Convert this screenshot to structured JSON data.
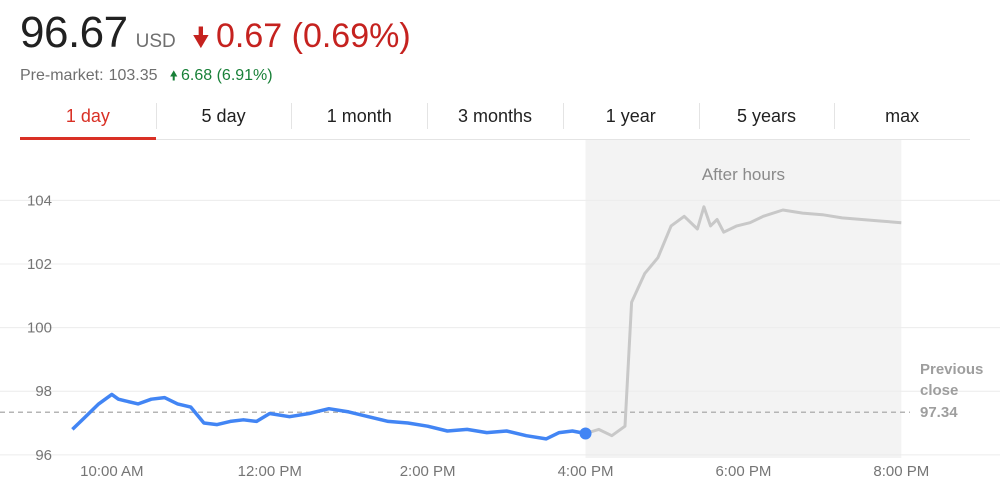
{
  "quote": {
    "price": "96.67",
    "currency": "USD",
    "change": "0.67 (0.69%)",
    "pre_market_label": "Pre-market:",
    "pre_market_price": "103.35",
    "pre_market_change": "6.68 (6.91%)"
  },
  "colors": {
    "regular_line": "#4285f4",
    "after_hours_line": "#c8c8c8",
    "after_hours_band": "#f3f3f3",
    "negative": "#d93025",
    "positive": "#188038",
    "grid": "#ececec"
  },
  "tabs": [
    "1 day",
    "5 day",
    "1 month",
    "3 months",
    "1 year",
    "5 years",
    "max"
  ],
  "active_tab": "1 day",
  "chart_data": {
    "type": "line",
    "y_ticks": [
      "104",
      "102",
      "100",
      "98",
      "96"
    ],
    "x_ticks": [
      "10:00 AM",
      "12:00 PM",
      "2:00 PM",
      "4:00 PM",
      "6:00 PM",
      "8:00 PM"
    ],
    "ylim": [
      95.9,
      105.9
    ],
    "xlim": [
      "9:30 AM",
      "8:00 PM"
    ],
    "grid": true,
    "after_hours_label": "After hours",
    "after_hours_range": [
      "4:00 PM",
      "8:00 PM"
    ],
    "previous_close": {
      "label_line1": "Previous",
      "label_line2": "close",
      "value_label": "97.34",
      "value": 97.34
    },
    "regular_session": {
      "time": [
        "9:30 AM",
        "9:40 AM",
        "9:50 AM",
        "10:00 AM",
        "10:05 AM",
        "10:10 AM",
        "10:20 AM",
        "10:30 AM",
        "10:40 AM",
        "10:50 AM",
        "11:00 AM",
        "11:10 AM",
        "11:20 AM",
        "11:30 AM",
        "11:40 AM",
        "11:50 AM",
        "12:00 PM",
        "12:15 PM",
        "12:30 PM",
        "12:45 PM",
        "1:00 PM",
        "1:15 PM",
        "1:30 PM",
        "1:45 PM",
        "2:00 PM",
        "2:15 PM",
        "2:30 PM",
        "2:45 PM",
        "3:00 PM",
        "3:15 PM",
        "3:30 PM",
        "3:40 PM",
        "3:50 PM",
        "4:00 PM"
      ],
      "value": [
        96.8,
        97.2,
        97.6,
        97.9,
        97.75,
        97.7,
        97.6,
        97.75,
        97.8,
        97.6,
        97.5,
        97.0,
        96.95,
        97.05,
        97.1,
        97.05,
        97.3,
        97.2,
        97.3,
        97.45,
        97.35,
        97.2,
        97.05,
        97.0,
        96.9,
        96.75,
        96.8,
        96.7,
        96.75,
        96.6,
        96.5,
        96.7,
        96.75,
        96.67
      ]
    },
    "after_hours": {
      "time": [
        "4:00 PM",
        "4:10 PM",
        "4:20 PM",
        "4:30 PM",
        "4:35 PM",
        "4:45 PM",
        "4:55 PM",
        "5:05 PM",
        "5:15 PM",
        "5:25 PM",
        "5:30 PM",
        "5:35 PM",
        "5:40 PM",
        "5:45 PM",
        "5:55 PM",
        "6:05 PM",
        "6:15 PM",
        "6:30 PM",
        "6:45 PM",
        "7:00 PM",
        "7:15 PM",
        "7:30 PM",
        "7:45 PM",
        "8:00 PM"
      ],
      "value": [
        96.67,
        96.8,
        96.6,
        96.9,
        100.8,
        101.7,
        102.2,
        103.2,
        103.5,
        103.1,
        103.8,
        103.2,
        103.4,
        103.0,
        103.2,
        103.3,
        103.5,
        103.7,
        103.6,
        103.55,
        103.45,
        103.4,
        103.35,
        103.3
      ]
    }
  }
}
